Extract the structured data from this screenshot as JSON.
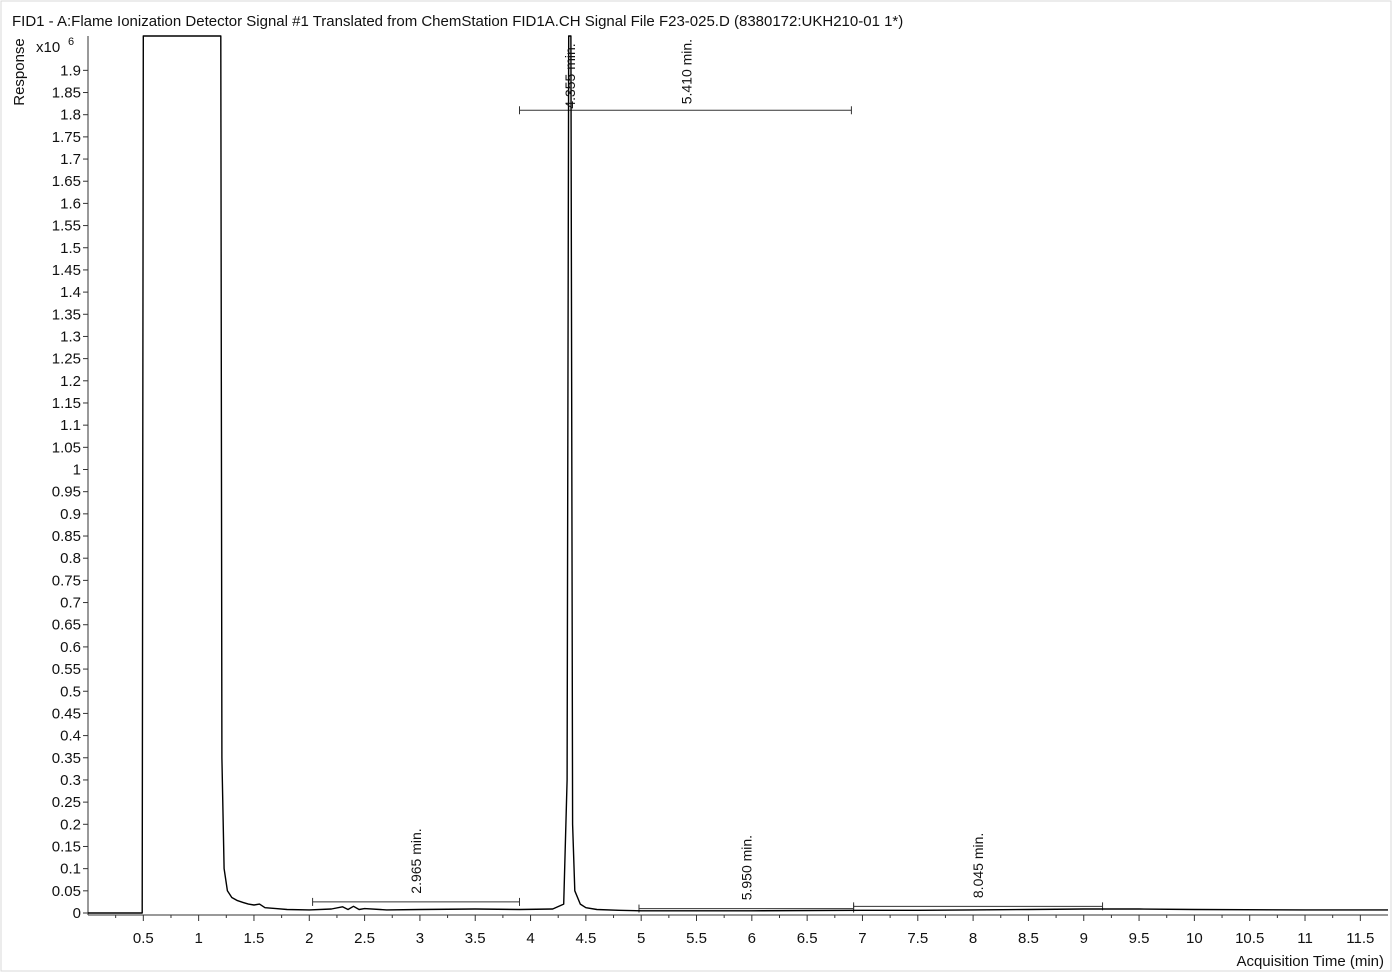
{
  "chart_data": {
    "type": "line",
    "title": "FID1 - A:Flame Ionization Detector Signal #1 Translated from ChemStation FID1A.CH  Signal File F23-025.D (8380172:UKH210-01 1*)",
    "xlabel": "Acquisition Time (min)",
    "ylabel": "Response",
    "y_multiplier_base": "x10",
    "y_multiplier_exp": "6",
    "xlim": [
      0,
      11.75
    ],
    "ylim": [
      -0.01,
      2.0
    ],
    "x_ticks": [
      0.5,
      1,
      1.5,
      2,
      2.5,
      3,
      3.5,
      4,
      4.5,
      5,
      5.5,
      6,
      6.5,
      7,
      7.5,
      8,
      8.5,
      9,
      9.5,
      10,
      10.5,
      11,
      11.5
    ],
    "x_tick_labels": [
      "0.5",
      "1",
      "1.5",
      "2",
      "2.5",
      "3",
      "3.5",
      "4",
      "4.5",
      "5",
      "5.5",
      "6",
      "6.5",
      "7",
      "7.5",
      "8",
      "8.5",
      "9",
      "9.5",
      "10",
      "10.5",
      "11",
      "11.5"
    ],
    "y_ticks": [
      0,
      0.05,
      0.1,
      0.15,
      0.2,
      0.25,
      0.3,
      0.35,
      0.4,
      0.45,
      0.5,
      0.55,
      0.6,
      0.65,
      0.7,
      0.75,
      0.8,
      0.85,
      0.9,
      0.95,
      1,
      1.05,
      1.1,
      1.15,
      1.2,
      1.25,
      1.3,
      1.35,
      1.4,
      1.45,
      1.5,
      1.55,
      1.6,
      1.65,
      1.7,
      1.75,
      1.8,
      1.85,
      1.9
    ],
    "y_tick_labels": [
      "0",
      "0.05",
      "0.1",
      "0.15",
      "0.2",
      "0.25",
      "0.3",
      "0.35",
      "0.4",
      "0.45",
      "0.5",
      "0.55",
      "0.6",
      "0.65",
      "0.7",
      "0.75",
      "0.8",
      "0.85",
      "0.9",
      "0.95",
      "1",
      "1.05",
      "1.1",
      "1.15",
      "1.2",
      "1.25",
      "1.3",
      "1.35",
      "1.4",
      "1.45",
      "1.5",
      "1.55",
      "1.6",
      "1.65",
      "1.7",
      "1.75",
      "1.8",
      "1.85",
      "1.9"
    ],
    "grid": false,
    "series": [
      {
        "color": "#000000",
        "x": [
          0,
          0.49,
          0.5,
          0.51,
          1.19,
          1.2,
          1.21,
          1.23,
          1.26,
          1.3,
          1.35,
          1.4,
          1.45,
          1.5,
          1.55,
          1.6,
          1.7,
          1.8,
          2.0,
          2.2,
          2.3,
          2.35,
          2.4,
          2.45,
          2.5,
          2.7,
          3.0,
          3.5,
          3.9,
          4.2,
          4.3,
          4.33,
          4.345,
          4.355,
          4.365,
          4.38,
          4.4,
          4.45,
          4.5,
          4.6,
          4.8,
          5.0,
          6.0,
          7.0,
          7.5,
          8.0,
          8.5,
          9.0,
          9.5,
          10.0,
          11.0,
          11.75
        ],
        "y": [
          0,
          0,
          2.0,
          2.0,
          2.0,
          2.0,
          0.35,
          0.1,
          0.05,
          0.035,
          0.028,
          0.024,
          0.02,
          0.018,
          0.02,
          0.012,
          0.01,
          0.008,
          0.007,
          0.009,
          0.014,
          0.008,
          0.015,
          0.008,
          0.01,
          0.007,
          0.008,
          0.009,
          0.008,
          0.009,
          0.02,
          0.3,
          2.0,
          2.0,
          2.0,
          0.2,
          0.05,
          0.02,
          0.012,
          0.008,
          0.006,
          0.005,
          0.005,
          0.006,
          0.006,
          0.007,
          0.008,
          0.009,
          0.009,
          0.008,
          0.007,
          0.007
        ]
      }
    ],
    "annotations": [
      {
        "text": "4.355 min.",
        "x": 4.355,
        "y": 1.8
      },
      {
        "text": "5.410 min.",
        "x": 5.41,
        "y": 1.81
      },
      {
        "text": "2.965 min.",
        "x": 2.965,
        "y": 0.03
      },
      {
        "text": "5.950 min.",
        "x": 5.95,
        "y": 0.015
      },
      {
        "text": "8.045 min.",
        "x": 8.045,
        "y": 0.02
      }
    ],
    "integration_bars": [
      {
        "x0": 3.9,
        "x1": 6.9,
        "y": 1.81
      },
      {
        "x0": 2.03,
        "x1": 3.9,
        "y": 0.025
      },
      {
        "x0": 4.98,
        "x1": 6.92,
        "y": 0.01
      },
      {
        "x0": 6.92,
        "x1": 9.17,
        "y": 0.015
      }
    ]
  }
}
